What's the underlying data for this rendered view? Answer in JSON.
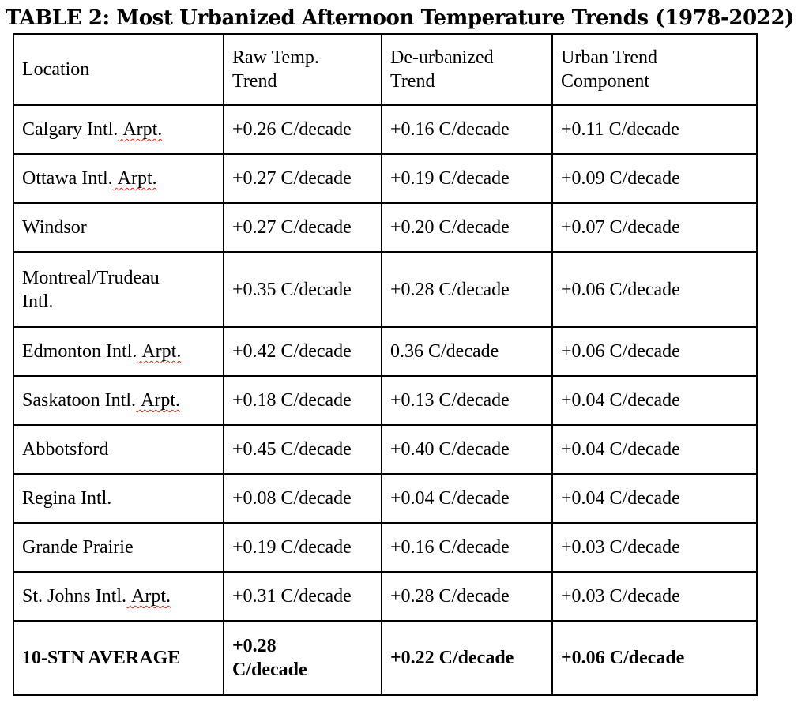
{
  "title": "TABLE 2: Most Urbanized Afternoon Temperature Trends (1978-2022)",
  "colors": {
    "text": "#000000",
    "table_border": "#000000",
    "background": "#ffffff",
    "spellcheck_underline_red": "#e02a1e"
  },
  "table": {
    "headers": [
      "Location",
      "Raw Temp.\nTrend",
      "De-urbanized\nTrend",
      "Urban Trend\nComponent"
    ],
    "unit": "C/decade",
    "rows": [
      {
        "name": "Calgary Intl.",
        "flagged": "Arpt.",
        "raw": "+0.26 C/decade",
        "deurb": "+0.16 C/decade",
        "urban": "+0.11 C/decade"
      },
      {
        "name": "Ottawa Intl.",
        "flagged": "Arpt.",
        "raw": "+0.27 C/decade",
        "deurb": "+0.19 C/decade",
        "urban": "+0.09 C/decade"
      },
      {
        "name": "Windsor",
        "flagged": "",
        "raw": "+0.27 C/decade",
        "deurb": "+0.20 C/decade",
        "urban": "+0.07 C/decade"
      },
      {
        "name": "Montreal/Trudeau\nIntl.",
        "flagged": "",
        "raw": "+0.35 C/decade",
        "deurb": "+0.28 C/decade",
        "urban": "+0.06 C/decade"
      },
      {
        "name": "Edmonton Intl.",
        "flagged": "Arpt.",
        "raw": "+0.42 C/decade",
        "deurb": "0.36 C/decade",
        "urban": "+0.06 C/decade"
      },
      {
        "name": "Saskatoon Intl.",
        "flagged": "Arpt.",
        "raw": "+0.18 C/decade",
        "deurb": "+0.13 C/decade",
        "urban": "+0.04 C/decade"
      },
      {
        "name": "Abbotsford",
        "flagged": "",
        "raw": "+0.45 C/decade",
        "deurb": "+0.40 C/decade",
        "urban": "+0.04 C/decade"
      },
      {
        "name": "Regina Intl.",
        "flagged": "",
        "raw": "+0.08 C/decade",
        "deurb": "+0.04 C/decade",
        "urban": "+0.04 C/decade"
      },
      {
        "name": "Grande Prairie",
        "flagged": "",
        "raw": "+0.19 C/decade",
        "deurb": "+0.16 C/decade",
        "urban": "+0.03 C/decade"
      },
      {
        "name": "St. Johns Intl.",
        "flagged": "Arpt.",
        "raw": "+0.31 C/decade",
        "deurb": "+0.28 C/decade",
        "urban": "+0.03 C/decade"
      }
    ],
    "footer": {
      "label": "10-STN AVERAGE",
      "raw": "+0.28\nC/decade",
      "deurb": "+0.22 C/decade",
      "urban": "+0.06 C/decade"
    }
  }
}
